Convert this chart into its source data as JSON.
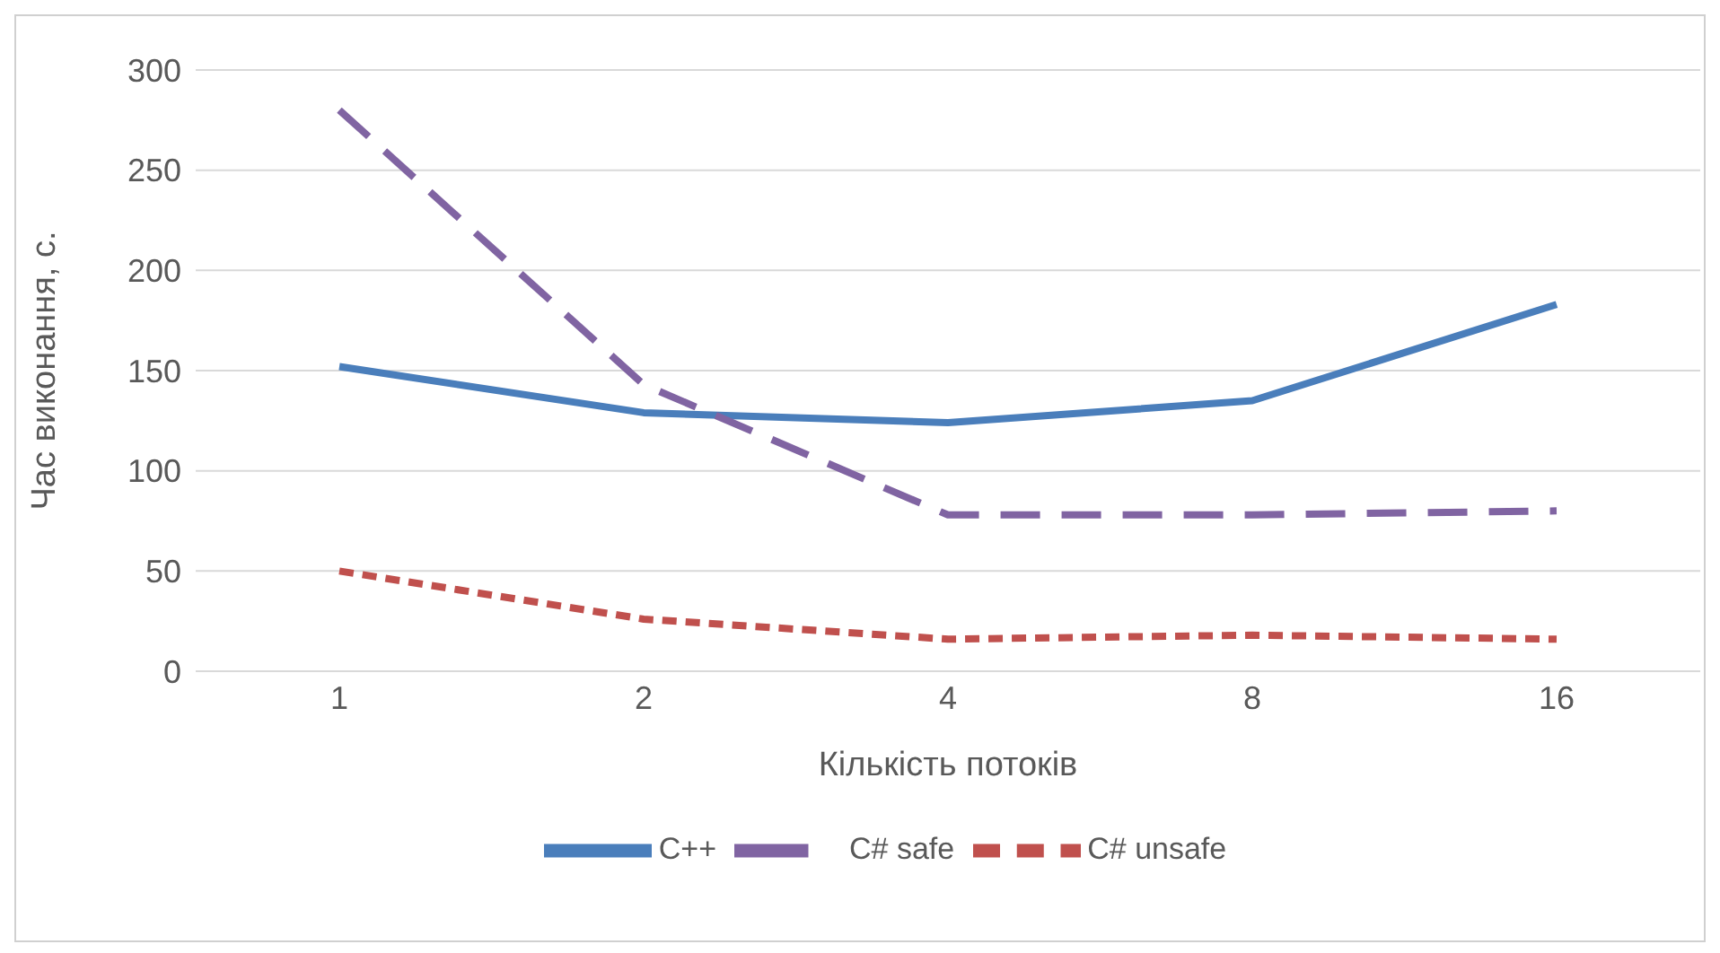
{
  "chart_data": {
    "type": "line",
    "xlabel": "Кількість потоків",
    "ylabel": "Час виконання, с.",
    "categories": [
      "1",
      "2",
      "4",
      "8",
      "16"
    ],
    "ylim": [
      0,
      300
    ],
    "yticks": [
      0,
      50,
      100,
      150,
      200,
      250,
      300
    ],
    "grid": "y",
    "legend": "bottom",
    "marker": "none",
    "series": [
      {
        "name": "C++",
        "color": "#4a7ebb",
        "line_style": "solid",
        "values": [
          152,
          129,
          124,
          135,
          183
        ]
      },
      {
        "name": "C# safe",
        "color": "#8064a2",
        "line_style": "dashed",
        "values": [
          280,
          143,
          78,
          78,
          80
        ]
      },
      {
        "name": "C# unsafe",
        "color": "#c0504d",
        "line_style": "dotted",
        "values": [
          50,
          26,
          16,
          18,
          16
        ]
      }
    ]
  }
}
